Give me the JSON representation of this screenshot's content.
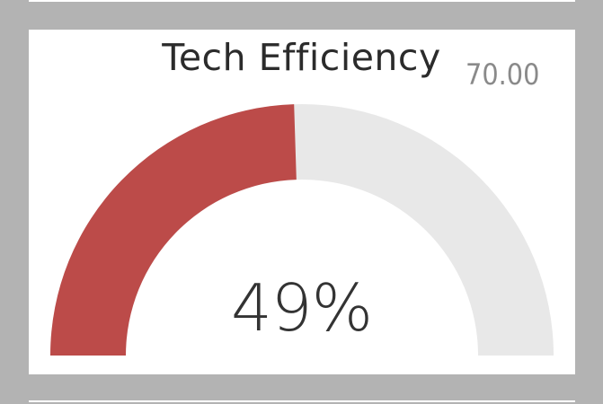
{
  "visual": {
    "title": "Tech Efficiency",
    "target_label": "70.00",
    "value_label": "49%"
  },
  "colors": {
    "frame": "#b3b3b3",
    "card": "#ffffff",
    "fill": "#bc4b49",
    "track": "#e8e8e8",
    "title": "#2b2b2b",
    "target": "#8a8a8a",
    "value": "#333333"
  },
  "chart_data": {
    "type": "gauge",
    "title": "Tech Efficiency",
    "value": 0.49,
    "value_display": "49%",
    "target": "70.00",
    "min": 0,
    "max": 1
  }
}
